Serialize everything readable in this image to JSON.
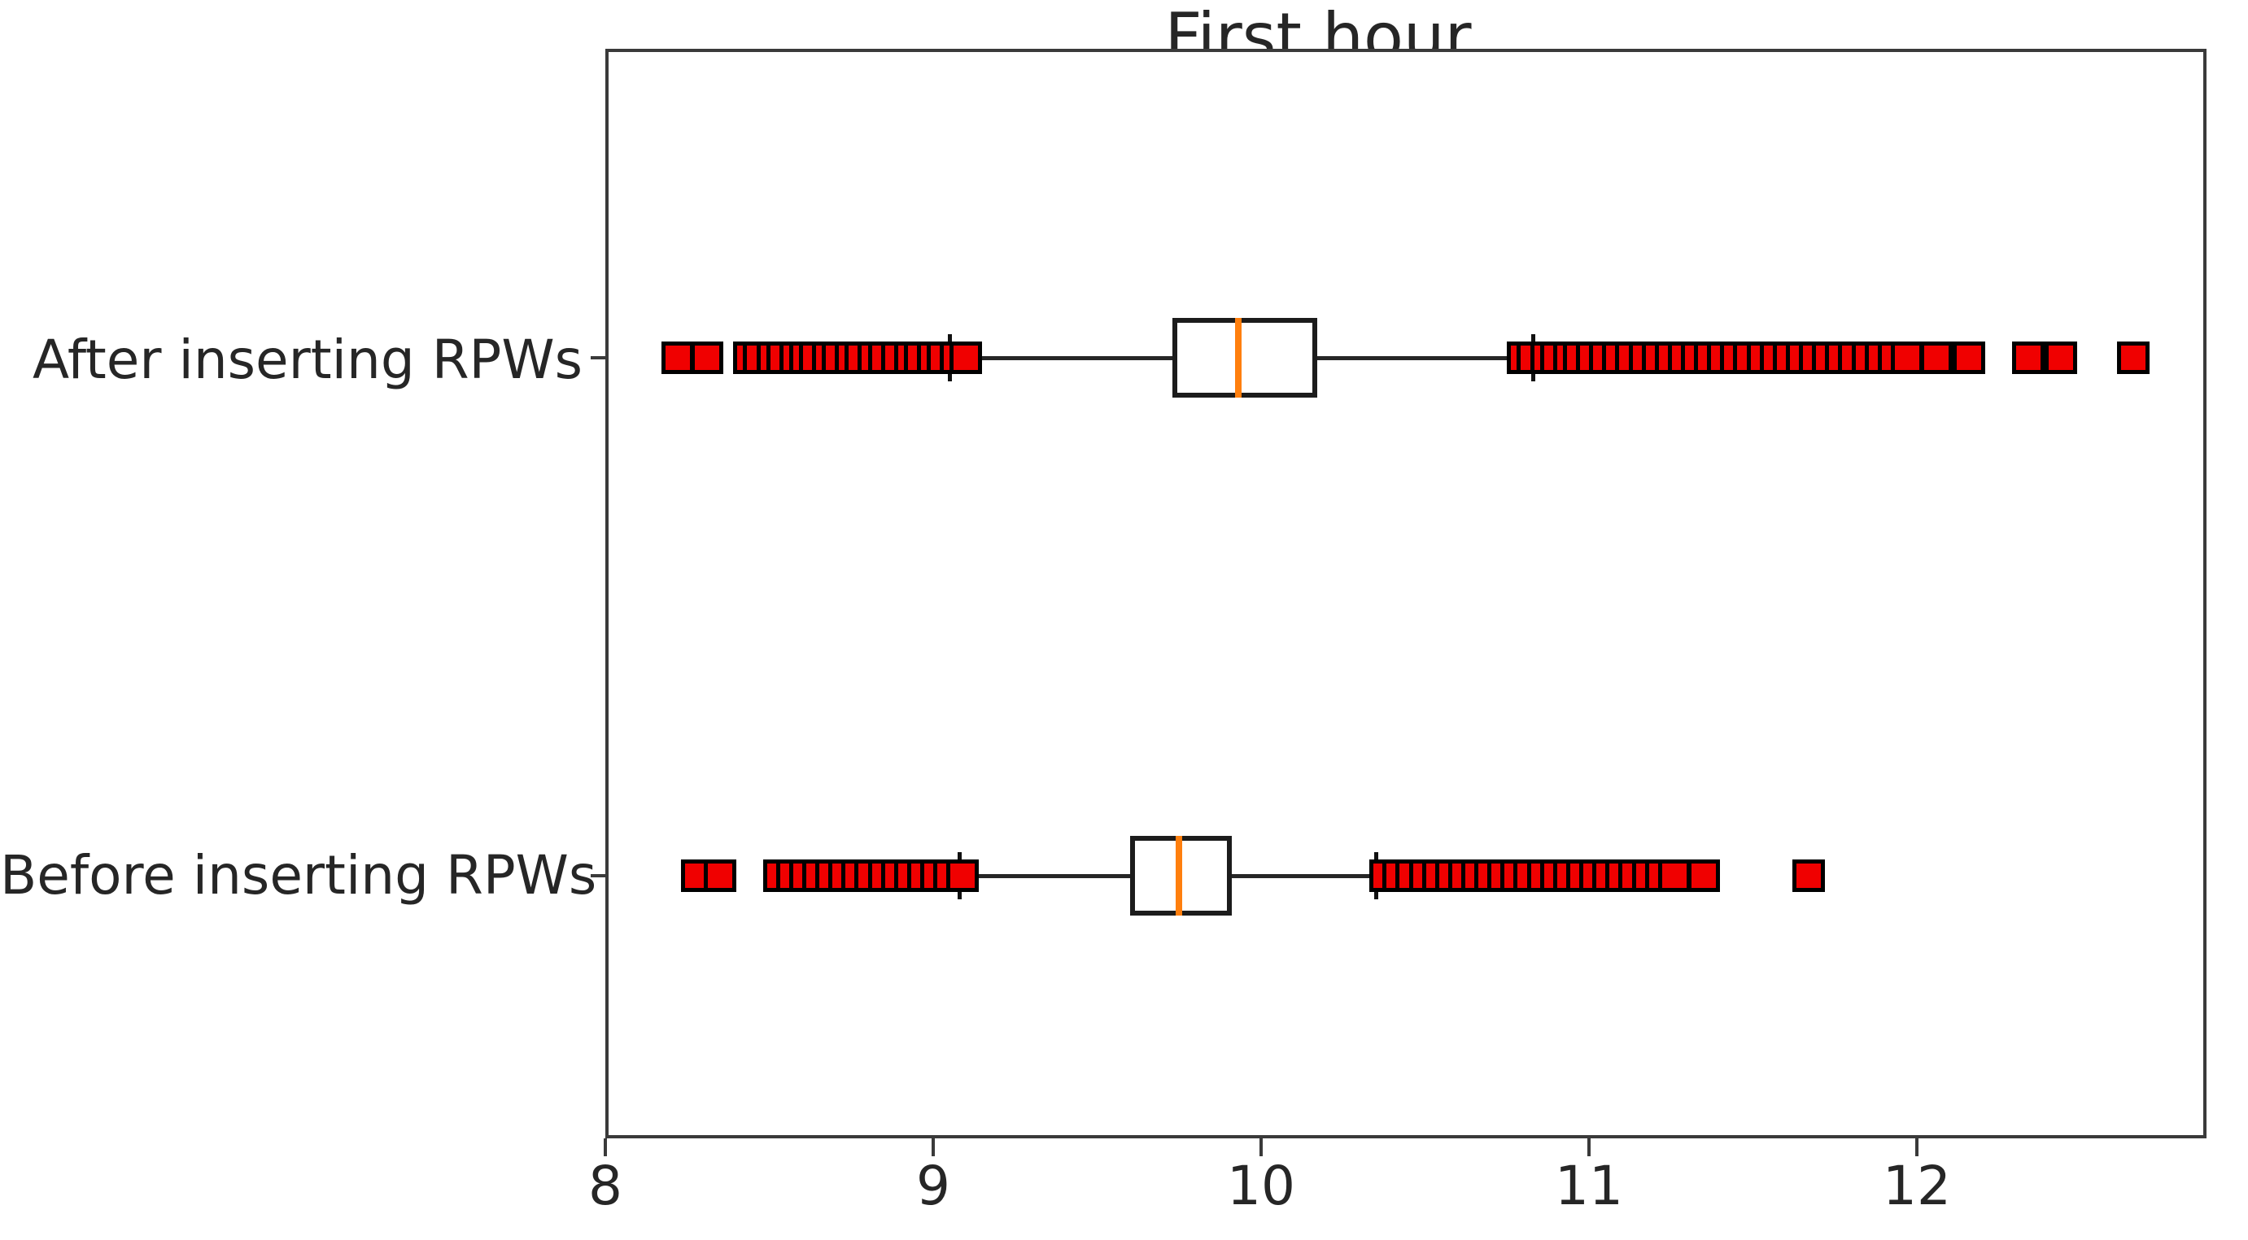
{
  "title": "First hour",
  "colors": {
    "flier_fill": "#f00000",
    "flier_edge": "#000000",
    "median": "#ff7f0e",
    "box_line": "#1c1c1c",
    "frame": "#3a3a3a",
    "text": "#262626"
  },
  "chart_data": {
    "type": "boxplot-horizontal",
    "title": "First hour",
    "xlabel": "",
    "ylabel": "",
    "x_ticks": [
      "8",
      "9",
      "10",
      "11",
      "12"
    ],
    "x_tick_values": [
      8,
      9,
      10,
      11,
      12
    ],
    "xlim": [
      8,
      12.89
    ],
    "grid": false,
    "series": [
      {
        "label": "Before inserting RPWs",
        "position": "bottom",
        "whisker_low": 9.08,
        "q1": 9.6,
        "median": 9.75,
        "q3": 9.91,
        "whisker_high": 10.35,
        "fliers_low": [
          8.28,
          8.35,
          8.53,
          8.57,
          8.61,
          8.65,
          8.69,
          8.73,
          8.77,
          8.81,
          8.85,
          8.89,
          8.93,
          8.97,
          9.01,
          9.05,
          9.09
        ],
        "fliers_high": [
          10.38,
          10.42,
          10.46,
          10.5,
          10.54,
          10.58,
          10.62,
          10.66,
          10.7,
          10.74,
          10.78,
          10.82,
          10.86,
          10.9,
          10.94,
          10.98,
          11.02,
          11.06,
          11.1,
          11.14,
          11.18,
          11.22,
          11.26,
          11.35,
          11.67
        ]
      },
      {
        "label": "After inserting RPWs",
        "position": "top",
        "whisker_low": 9.05,
        "q1": 9.73,
        "median": 9.93,
        "q3": 10.17,
        "whisker_high": 10.83,
        "fliers_low": [
          8.22,
          8.31,
          8.44,
          8.47,
          8.51,
          8.54,
          8.58,
          8.61,
          8.64,
          8.68,
          8.71,
          8.75,
          8.78,
          8.82,
          8.85,
          8.89,
          8.93,
          8.96,
          9.0,
          9.03,
          9.07,
          9.1
        ],
        "fliers_high": [
          10.8,
          10.83,
          10.87,
          10.9,
          10.94,
          10.97,
          11.01,
          11.05,
          11.09,
          11.13,
          11.17,
          11.21,
          11.25,
          11.29,
          11.33,
          11.37,
          11.41,
          11.45,
          11.49,
          11.53,
          11.57,
          11.61,
          11.65,
          11.69,
          11.73,
          11.77,
          11.81,
          11.85,
          11.89,
          11.93,
          11.97,
          12.06,
          12.16,
          12.34,
          12.44,
          12.66
        ]
      }
    ]
  }
}
